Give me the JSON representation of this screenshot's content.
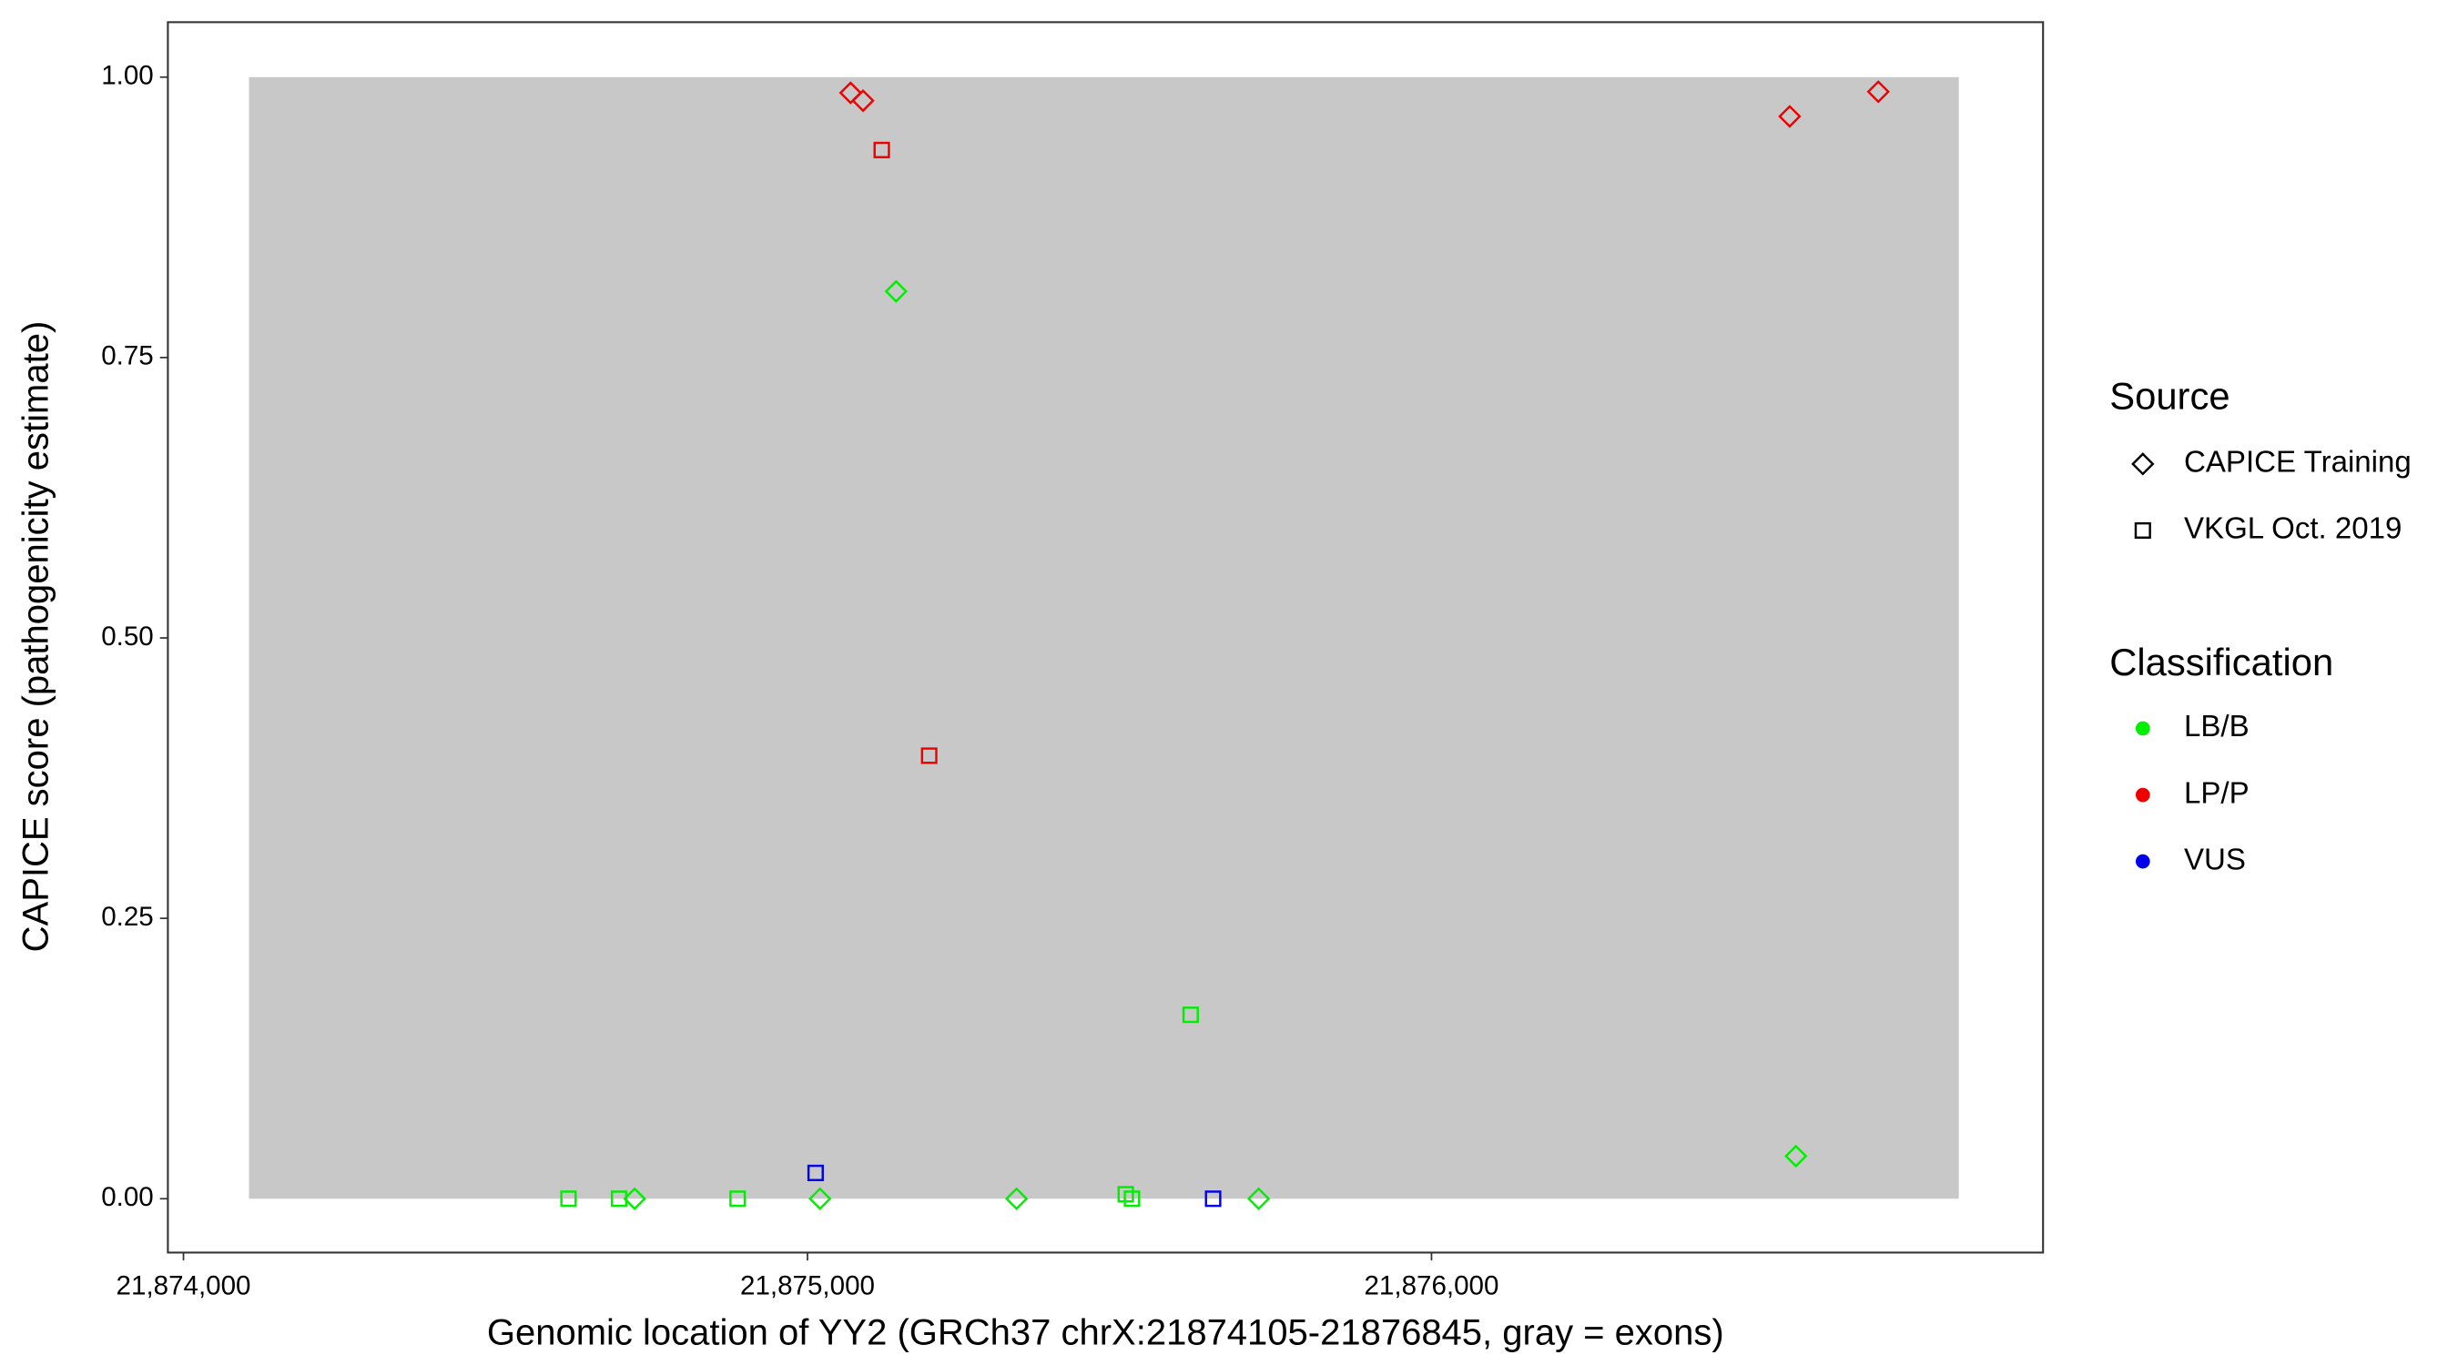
{
  "chart_data": {
    "type": "scatter",
    "x_label": "Genomic location of YY2 (GRCh37 chrX:21874105-21876845, gray = exons)",
    "y_label": "CAPICE score (pathogenicity estimate)",
    "xlim": [
      21873975,
      21876980
    ],
    "ylim": [
      -0.048,
      1.049
    ],
    "xticks": [
      {
        "value": 21874000,
        "label": "21,874,000"
      },
      {
        "value": 21875000,
        "label": "21,875,000"
      },
      {
        "value": 21876000,
        "label": "21,876,000"
      }
    ],
    "yticks": [
      {
        "value": 0,
        "label": "0.00"
      },
      {
        "value": 0.25,
        "label": "0.25"
      },
      {
        "value": 0.5,
        "label": "0.50"
      },
      {
        "value": 0.75,
        "label": "0.75"
      },
      {
        "value": 1,
        "label": "1.00"
      }
    ],
    "regions": [
      {
        "x": [
          21874105,
          21876845
        ],
        "y": [
          0,
          1
        ],
        "color": "#c8c8c8"
      }
    ],
    "shape_legend": {
      "title": "Source",
      "entries": [
        {
          "label": "CAPICE Training",
          "shape": "diamond"
        },
        {
          "label": "VKGL Oct. 2019",
          "shape": "square"
        }
      ]
    },
    "color_legend_title": "Classification",
    "series": [
      {
        "name": "LB/B",
        "color": "#00ee00",
        "x": [
          21874617,
          21874698,
          21874723,
          21874888,
          21875020,
          21875142,
          21875335,
          21875510,
          21875520,
          21875614,
          21875723,
          21876584
        ],
        "values": [
          0,
          0,
          0,
          0,
          0,
          0.809,
          0,
          0.004,
          0,
          0.164,
          0,
          0.038
        ],
        "shapes": [
          "square",
          "square",
          "diamond",
          "square",
          "diamond",
          "diamond",
          "diamond",
          "square",
          "square",
          "square",
          "diamond",
          "diamond"
        ]
      },
      {
        "name": "LP/P",
        "color": "#ee0000",
        "x": [
          21875069,
          21875089,
          21875119,
          21875195,
          21876574,
          21876716
        ],
        "values": [
          0.986,
          0.979,
          0.935,
          0.395,
          0.965,
          0.987
        ],
        "shapes": [
          "diamond",
          "diamond",
          "square",
          "square",
          "diamond",
          "diamond"
        ]
      },
      {
        "name": "VUS",
        "color": "#0000ee",
        "x": [
          21875013,
          21875650
        ],
        "values": [
          0.023,
          0
        ],
        "shapes": [
          "square",
          "square"
        ]
      }
    ]
  }
}
